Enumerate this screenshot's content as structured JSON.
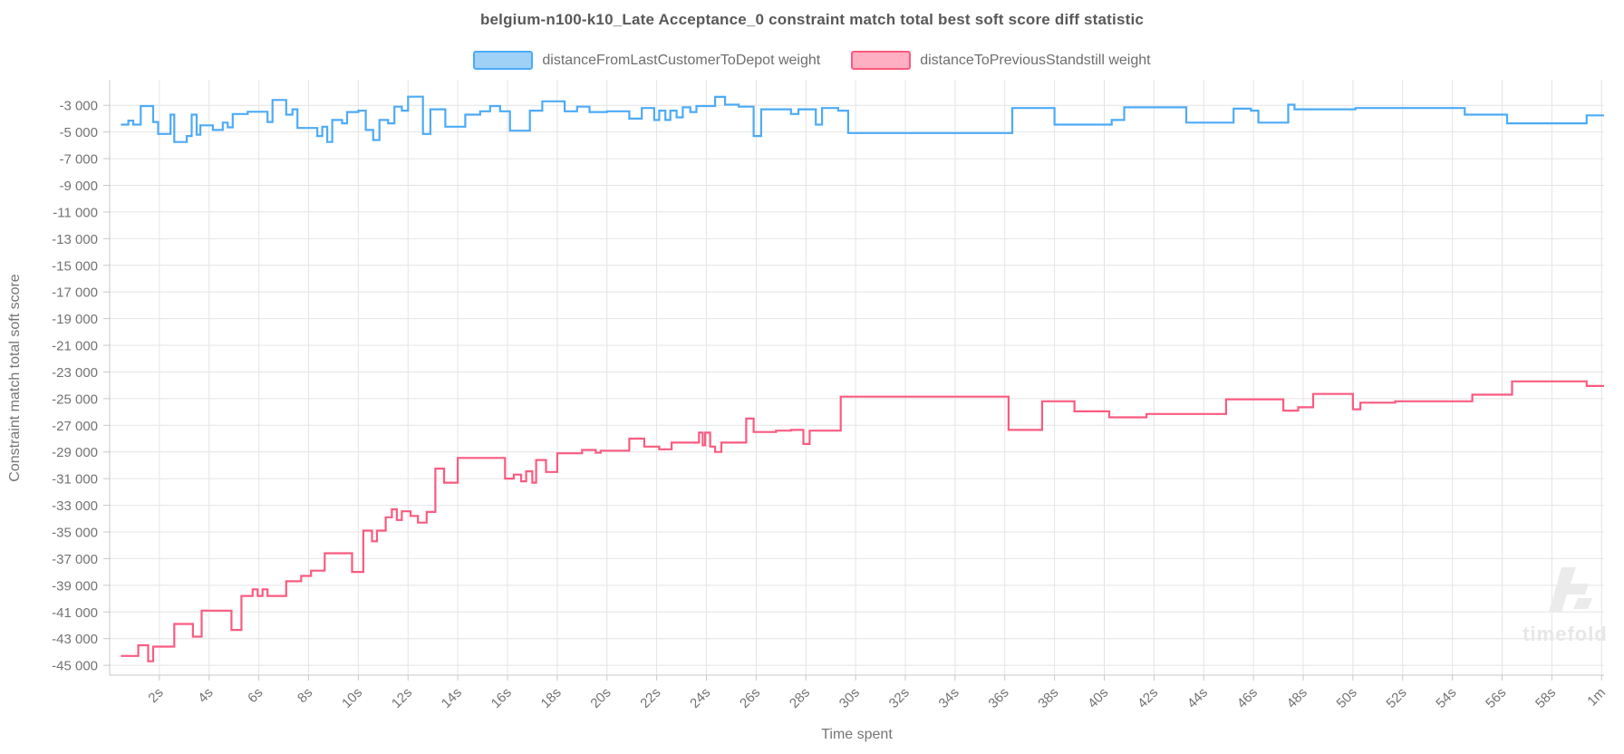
{
  "chart_data": {
    "type": "line",
    "step": true,
    "title": "belgium-n100-k10_Late Acceptance_0 constraint match total best soft score diff statistic",
    "xlabel": "Time spent",
    "ylabel": "Constraint match total soft score",
    "grid": true,
    "legend_position": "top",
    "xlim": [
      0,
      60.1
    ],
    "ylim": [
      -45740,
      -1082
    ],
    "x_tick_values": [
      2,
      4,
      6,
      8,
      10,
      12,
      14,
      16,
      18,
      20,
      22,
      24,
      26,
      28,
      30,
      32,
      34,
      36,
      38,
      40,
      42,
      44,
      46,
      48,
      50,
      52,
      54,
      56,
      58,
      60
    ],
    "x_tick_labels": [
      "2s",
      "4s",
      "6s",
      "8s",
      "10s",
      "12s",
      "14s",
      "16s",
      "18s",
      "20s",
      "22s",
      "24s",
      "26s",
      "28s",
      "30s",
      "32s",
      "34s",
      "36s",
      "38s",
      "40s",
      "42s",
      "44s",
      "46s",
      "48s",
      "50s",
      "52s",
      "54s",
      "56s",
      "58s",
      "1m"
    ],
    "y_tick_values": [
      -3000,
      -5000,
      -7000,
      -9000,
      -11000,
      -13000,
      -15000,
      -17000,
      -19000,
      -21000,
      -23000,
      -25000,
      -27000,
      -29000,
      -31000,
      -33000,
      -35000,
      -37000,
      -39000,
      -41000,
      -43000,
      -45000
    ],
    "y_tick_labels": [
      "-3 000",
      "-5 000",
      "-7 000",
      "-9 000",
      "-11 000",
      "-13 000",
      "-15 000",
      "-17 000",
      "-19 000",
      "-21 000",
      "-23 000",
      "-25 000",
      "-27 000",
      "-29 000",
      "-31 000",
      "-33 000",
      "-35 000",
      "-37 000",
      "-39 000",
      "-41 000",
      "-43 000",
      "-45 000"
    ],
    "series": [
      {
        "name": "distanceFromLastCustomerToDepot weight",
        "color": "#4dabf7",
        "legend_fill": "#9fd0f6",
        "points": [
          [
            0.45,
            -4450
          ],
          [
            0.75,
            -4150
          ],
          [
            0.95,
            -4450
          ],
          [
            1.25,
            -3050
          ],
          [
            1.75,
            -4250
          ],
          [
            1.95,
            -5150
          ],
          [
            2.45,
            -3700
          ],
          [
            2.6,
            -5750
          ],
          [
            3.1,
            -5300
          ],
          [
            3.3,
            -3700
          ],
          [
            3.5,
            -5200
          ],
          [
            3.65,
            -4500
          ],
          [
            4.15,
            -4850
          ],
          [
            4.55,
            -4300
          ],
          [
            4.75,
            -4650
          ],
          [
            4.95,
            -3650
          ],
          [
            5.55,
            -3480
          ],
          [
            6.35,
            -4250
          ],
          [
            6.55,
            -2600
          ],
          [
            7.1,
            -3700
          ],
          [
            7.35,
            -3300
          ],
          [
            7.55,
            -4700
          ],
          [
            8.35,
            -5300
          ],
          [
            8.55,
            -4600
          ],
          [
            8.75,
            -5750
          ],
          [
            8.95,
            -4100
          ],
          [
            9.35,
            -4350
          ],
          [
            9.55,
            -3500
          ],
          [
            10.0,
            -3400
          ],
          [
            10.3,
            -4850
          ],
          [
            10.6,
            -5600
          ],
          [
            10.85,
            -4100
          ],
          [
            11.2,
            -4350
          ],
          [
            11.45,
            -3100
          ],
          [
            11.75,
            -3400
          ],
          [
            12.0,
            -2350
          ],
          [
            12.6,
            -5150
          ],
          [
            12.9,
            -3300
          ],
          [
            13.5,
            -4600
          ],
          [
            14.3,
            -3700
          ],
          [
            14.9,
            -3450
          ],
          [
            15.3,
            -3050
          ],
          [
            15.7,
            -3450
          ],
          [
            16.1,
            -4900
          ],
          [
            16.9,
            -3400
          ],
          [
            17.4,
            -2700
          ],
          [
            18.3,
            -3450
          ],
          [
            18.8,
            -3100
          ],
          [
            19.3,
            -3500
          ],
          [
            20.0,
            -3450
          ],
          [
            20.9,
            -4000
          ],
          [
            21.4,
            -3200
          ],
          [
            21.9,
            -4100
          ],
          [
            22.1,
            -3400
          ],
          [
            22.35,
            -4100
          ],
          [
            22.55,
            -3400
          ],
          [
            22.8,
            -3900
          ],
          [
            23.05,
            -3150
          ],
          [
            23.35,
            -3500
          ],
          [
            23.6,
            -3050
          ],
          [
            24.35,
            -2370
          ],
          [
            24.75,
            -2950
          ],
          [
            25.3,
            -3100
          ],
          [
            25.9,
            -5300
          ],
          [
            26.2,
            -3300
          ],
          [
            27.4,
            -3650
          ],
          [
            27.7,
            -3300
          ],
          [
            28.4,
            -4450
          ],
          [
            28.65,
            -3200
          ],
          [
            29.3,
            -3400
          ],
          [
            29.7,
            -5080
          ],
          [
            36.3,
            -3200
          ],
          [
            38.0,
            -4450
          ],
          [
            40.3,
            -4100
          ],
          [
            40.8,
            -3150
          ],
          [
            43.3,
            -4300
          ],
          [
            45.2,
            -3250
          ],
          [
            45.9,
            -3400
          ],
          [
            46.2,
            -4300
          ],
          [
            47.4,
            -2950
          ],
          [
            47.65,
            -3300
          ],
          [
            50.1,
            -3200
          ],
          [
            54.5,
            -3700
          ],
          [
            56.2,
            -4350
          ],
          [
            59.4,
            -3750
          ],
          [
            60.1,
            -3750
          ]
        ]
      },
      {
        "name": "distanceToPreviousStandstill weight",
        "color": "#fa5b80",
        "legend_fill": "#ffafc2",
        "points": [
          [
            0.45,
            -44300
          ],
          [
            1.15,
            -43500
          ],
          [
            1.55,
            -44700
          ],
          [
            1.75,
            -43600
          ],
          [
            2.6,
            -41900
          ],
          [
            3.35,
            -42850
          ],
          [
            3.7,
            -40900
          ],
          [
            4.9,
            -42350
          ],
          [
            5.3,
            -39800
          ],
          [
            5.75,
            -39300
          ],
          [
            5.95,
            -39800
          ],
          [
            6.15,
            -39300
          ],
          [
            6.35,
            -39800
          ],
          [
            7.1,
            -38700
          ],
          [
            7.7,
            -38300
          ],
          [
            8.1,
            -37900
          ],
          [
            8.65,
            -36600
          ],
          [
            9.75,
            -38000
          ],
          [
            10.2,
            -34900
          ],
          [
            10.55,
            -35700
          ],
          [
            10.75,
            -34900
          ],
          [
            11.1,
            -33900
          ],
          [
            11.35,
            -33300
          ],
          [
            11.55,
            -34100
          ],
          [
            11.75,
            -33450
          ],
          [
            12.1,
            -33800
          ],
          [
            12.4,
            -34300
          ],
          [
            12.75,
            -33500
          ],
          [
            13.1,
            -30250
          ],
          [
            13.45,
            -31300
          ],
          [
            14.0,
            -29450
          ],
          [
            15.9,
            -31000
          ],
          [
            16.25,
            -30700
          ],
          [
            16.55,
            -31200
          ],
          [
            16.75,
            -30450
          ],
          [
            17.0,
            -31300
          ],
          [
            17.15,
            -29600
          ],
          [
            17.55,
            -30500
          ],
          [
            18.0,
            -29100
          ],
          [
            19.0,
            -28850
          ],
          [
            19.55,
            -29050
          ],
          [
            19.75,
            -28900
          ],
          [
            20.9,
            -28000
          ],
          [
            21.5,
            -28600
          ],
          [
            22.1,
            -28800
          ],
          [
            22.6,
            -28300
          ],
          [
            23.7,
            -27550
          ],
          [
            23.85,
            -28500
          ],
          [
            23.95,
            -27550
          ],
          [
            24.15,
            -28600
          ],
          [
            24.35,
            -29000
          ],
          [
            24.6,
            -28300
          ],
          [
            25.6,
            -26500
          ],
          [
            25.9,
            -27500
          ],
          [
            26.8,
            -27400
          ],
          [
            27.4,
            -27350
          ],
          [
            27.9,
            -28400
          ],
          [
            28.15,
            -27400
          ],
          [
            29.4,
            -24850
          ],
          [
            36.15,
            -27350
          ],
          [
            37.5,
            -25200
          ],
          [
            38.8,
            -25950
          ],
          [
            40.2,
            -26400
          ],
          [
            41.7,
            -26150
          ],
          [
            44.9,
            -25050
          ],
          [
            47.2,
            -25900
          ],
          [
            47.8,
            -25650
          ],
          [
            48.4,
            -24650
          ],
          [
            50.0,
            -25800
          ],
          [
            50.3,
            -25300
          ],
          [
            51.7,
            -25200
          ],
          [
            54.8,
            -24700
          ],
          [
            56.4,
            -23700
          ],
          [
            59.4,
            -24050
          ],
          [
            60.1,
            -24050
          ]
        ]
      }
    ]
  },
  "watermark": {
    "text": "timefold"
  },
  "theme": {
    "grid_color": "#e4e4e4",
    "axis_color": "#c9c9c9",
    "tick_text_color": "#737373",
    "title_color": "#595959",
    "watermark_color": "#ebebeb"
  }
}
